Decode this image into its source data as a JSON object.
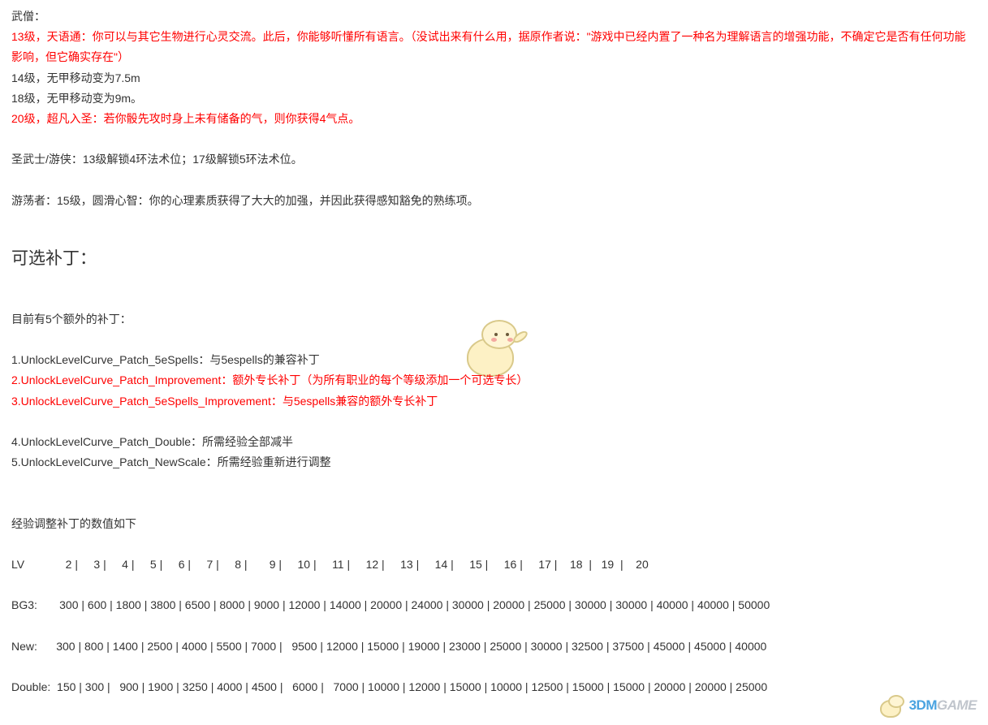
{
  "content": {
    "monk_header": "武僧：",
    "monk_13": "13级，天语通：你可以与其它生物进行心灵交流。此后，你能够听懂所有语言。（没试出来有什么用，据原作者说：\"游戏中已经内置了一种名为理解语言的增强功能，不确定它是否有任何功能影响，但它确实存在\"）",
    "monk_14": "14级，无甲移动变为7.5m",
    "monk_18": "18级，无甲移动变为9m。",
    "monk_20": "20级，超凡入圣：若你骰先攻时身上未有储备的气，则你获得4气点。",
    "paladin": "圣武士/游侠：13级解锁4环法术位；17级解锁5环法术位。",
    "rogue": "游荡者：15级，圆滑心智：你的心理素质获得了大大的加强，并因此获得感知豁免的熟练项。",
    "optional_heading": "可选补丁：",
    "patches_intro": "目前有5个额外的补丁：",
    "patch1": "1.UnlockLevelCurve_Patch_5eSpells：与5espells的兼容补丁",
    "patch2": "2.UnlockLevelCurve_Patch_Improvement：额外专长补丁（为所有职业的每个等级添加一个可选专长）",
    "patch3": "3.UnlockLevelCurve_Patch_5eSpells_Improvement：与5espells兼容的额外专长补丁",
    "patch4": "4.UnlockLevelCurve_Patch_Double：所需经验全部减半",
    "patch5": "5.UnlockLevelCurve_Patch_NewScale：所需经验重新进行调整",
    "xp_intro": "经验调整补丁的数值如下",
    "xp_table": {
      "lv": "LV             2 |     3 |     4 |     5 |     6 |     7 |     8 |       9 |     10 |     11 |     12 |     13 |     14 |     15 |     16 |     17 |    18  |   19  |    20",
      "bg3": "BG3:       300 | 600 | 1800 | 3800 | 6500 | 8000 | 9000 | 12000 | 14000 | 20000 | 24000 | 30000 | 20000 | 25000 | 30000 | 30000 | 40000 | 40000 | 50000",
      "new": "New:      300 | 800 | 1400 | 2500 | 4000 | 5500 | 7000 |   9500 | 12000 | 15000 | 19000 | 23000 | 25000 | 30000 | 32500 | 37500 | 45000 | 45000 | 40000",
      "double": "Double:  150 | 300 |   900 | 1900 | 3250 | 4000 | 4500 |   6000 |   7000 | 10000 | 12000 | 15000 | 10000 | 12500 | 15000 | 15000 | 20000 | 20000 | 25000"
    }
  },
  "logo": {
    "part1": "3DM",
    "part2": "GAME"
  },
  "colors": {
    "text_red": "#ff0000",
    "text_black": "#333333",
    "logo_blue": "#4aa3e0",
    "logo_grey": "#c0c5cc",
    "mascot_fill": "#fdf1c5",
    "mascot_border": "#d9c98a"
  }
}
